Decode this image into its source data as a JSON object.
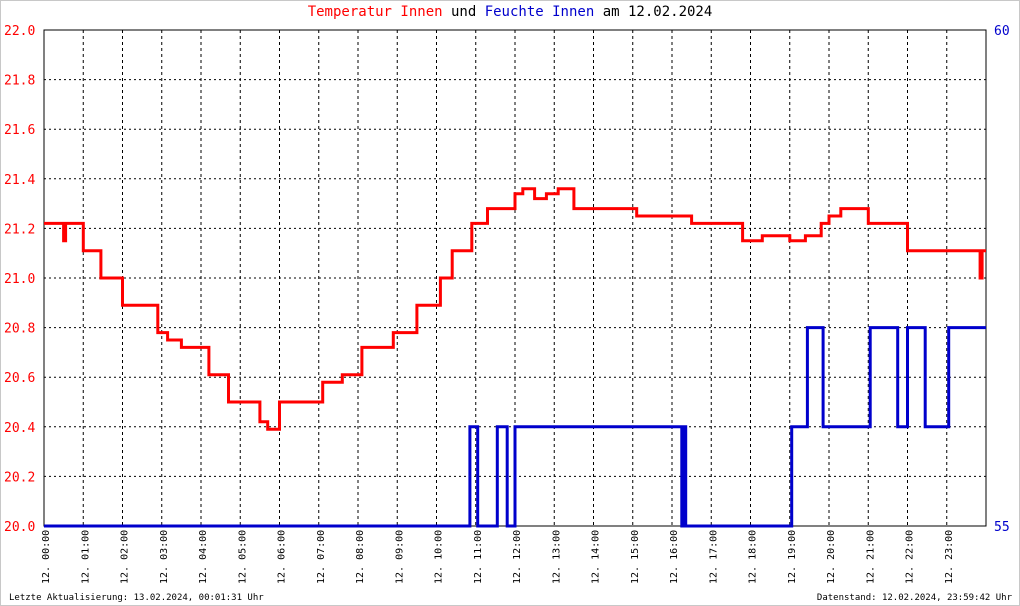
{
  "title": {
    "part1": "Temperatur Innen",
    "part2": " und ",
    "part3": "Feuchte Innen",
    "part4": " am 12.02.2024"
  },
  "footer": {
    "left": "Letzte Aktualisierung: 13.02.2024, 00:01:31 Uhr",
    "right": "Datenstand: 12.02.2024, 23:59:42 Uhr"
  },
  "colors": {
    "temperature": "#ff0000",
    "humidity": "#0000cc",
    "grid": "#000000"
  },
  "chart_data": {
    "type": "line",
    "x_unit": "hours of 12.02.2024",
    "xlim": [
      0,
      24
    ],
    "x_tick_labels": [
      "12. 00:00",
      "12. 01:00",
      "12. 02:00",
      "12. 03:00",
      "12. 04:00",
      "12. 05:00",
      "12. 06:00",
      "12. 07:00",
      "12. 08:00",
      "12. 09:00",
      "12. 10:00",
      "12. 11:00",
      "12. 12:00",
      "12. 13:00",
      "12. 14:00",
      "12. 15:00",
      "12. 16:00",
      "12. 17:00",
      "12. 18:00",
      "12. 19:00",
      "12. 20:00",
      "12. 21:00",
      "12. 22:00",
      "12. 23:00"
    ],
    "y_left": {
      "lim": [
        20.0,
        22.0
      ],
      "ticks": [
        "20.0",
        "20.2",
        "20.4",
        "20.6",
        "20.8",
        "21.0",
        "21.2",
        "21.4",
        "21.6",
        "21.8",
        "22.0"
      ]
    },
    "y_right": {
      "lim": [
        55,
        60
      ],
      "ticks": [
        "55",
        "60"
      ]
    },
    "grid": true,
    "series": [
      {
        "name": "Temperatur Innen",
        "axis": "left",
        "color": "#ff0000",
        "x": [
          0.0,
          0.5,
          0.55,
          1.0,
          1.45,
          2.0,
          2.9,
          3.15,
          3.5,
          4.2,
          4.45,
          4.7,
          5.0,
          5.5,
          5.7,
          6.0,
          6.9,
          7.1,
          7.6,
          8.1,
          8.9,
          9.5,
          10.1,
          10.4,
          10.9,
          11.0,
          11.3,
          11.8,
          12.0,
          12.2,
          12.5,
          12.8,
          13.1,
          13.5,
          13.7,
          14.0,
          14.5,
          15.0,
          15.1,
          15.6,
          16.0,
          16.5,
          16.9,
          17.4,
          17.8,
          18.3,
          18.8,
          19.0,
          19.4,
          19.8,
          20.0,
          20.3,
          20.6,
          21.0,
          21.4,
          21.6,
          22.0,
          22.5,
          23.0,
          23.4,
          23.5,
          23.8,
          23.85,
          23.9,
          24.0
        ],
        "y": [
          21.22,
          21.15,
          21.22,
          21.11,
          21.0,
          20.89,
          20.78,
          20.75,
          20.72,
          20.61,
          20.61,
          20.5,
          20.5,
          20.42,
          20.39,
          20.5,
          20.5,
          20.58,
          20.61,
          20.72,
          20.78,
          20.89,
          21.0,
          21.11,
          21.22,
          21.22,
          21.28,
          21.28,
          21.34,
          21.36,
          21.32,
          21.34,
          21.36,
          21.28,
          21.28,
          21.28,
          21.28,
          21.28,
          21.25,
          21.25,
          21.25,
          21.22,
          21.22,
          21.22,
          21.15,
          21.17,
          21.17,
          21.15,
          21.17,
          21.22,
          21.25,
          21.28,
          21.28,
          21.22,
          21.22,
          21.22,
          21.11,
          21.11,
          21.11,
          21.11,
          21.11,
          21.11,
          21.0,
          21.11,
          21.11
        ]
      },
      {
        "name": "Feuchte Innen",
        "axis": "right",
        "color": "#0000cc",
        "x": [
          0.0,
          10.8,
          10.85,
          11.0,
          11.05,
          11.5,
          11.55,
          11.75,
          11.8,
          12.0,
          13.0,
          14.0,
          15.0,
          16.2,
          16.25,
          16.3,
          16.35,
          19.0,
          19.05,
          19.4,
          19.45,
          19.8,
          19.85,
          20.3,
          20.35,
          21.0,
          21.05,
          21.7,
          21.75,
          21.95,
          22.0,
          22.4,
          22.45,
          23.0,
          23.05,
          24.0
        ],
        "y": [
          55,
          55,
          56,
          56,
          55,
          55,
          56,
          56,
          55,
          56,
          56,
          56,
          56,
          56,
          55,
          56,
          55,
          55,
          56,
          56,
          57,
          57,
          56,
          56,
          56,
          56,
          57,
          57,
          56,
          56,
          57,
          57,
          56,
          56,
          57,
          57
        ]
      }
    ]
  }
}
